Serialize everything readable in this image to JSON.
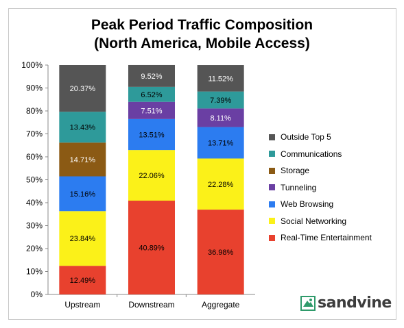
{
  "chart_data": {
    "type": "bar",
    "stacked": true,
    "title": "Peak Period Traffic Composition",
    "subtitle": "(North America, Mobile Access)",
    "categories": [
      "Upstream",
      "Downstream",
      "Aggregate"
    ],
    "ylim": [
      0,
      100
    ],
    "y_ticks": [
      "0%",
      "10%",
      "20%",
      "30%",
      "40%",
      "50%",
      "60%",
      "70%",
      "80%",
      "90%",
      "100%"
    ],
    "legend_position": "right",
    "series": [
      {
        "name": "Real-Time Entertainment",
        "color": "#e8412e",
        "values": [
          12.49,
          40.89,
          36.98
        ],
        "labels": [
          "12.49%",
          "40.89%",
          "36.98%"
        ]
      },
      {
        "name": "Social Networking",
        "color": "#fbf119",
        "values": [
          23.84,
          22.06,
          22.28
        ],
        "labels": [
          "23.84%",
          "22.06%",
          "22.28%"
        ]
      },
      {
        "name": "Web Browsing",
        "color": "#2c7cf0",
        "values": [
          15.16,
          13.51,
          13.71
        ],
        "labels": [
          "15.16%",
          "13.51%",
          "13.71%"
        ]
      },
      {
        "name": "Tunneling",
        "color": "#6a3fa3",
        "values": [
          0,
          7.51,
          8.11
        ],
        "labels": [
          "",
          "7.51%",
          "8.11%"
        ]
      },
      {
        "name": "Storage",
        "color": "#8b5a14",
        "values": [
          14.71,
          0,
          0
        ],
        "labels": [
          "14.71%",
          "",
          ""
        ]
      },
      {
        "name": "Communications",
        "color": "#2e9a9a",
        "values": [
          13.43,
          6.52,
          7.39
        ],
        "labels": [
          "13.43%",
          "6.52%",
          "7.39%"
        ]
      },
      {
        "name": "Outside Top 5",
        "color": "#555555",
        "values": [
          20.37,
          9.52,
          11.52
        ],
        "labels": [
          "20.37%",
          "9.52%",
          "11.52%"
        ]
      }
    ],
    "legend_order": [
      "Outside Top 5",
      "Communications",
      "Storage",
      "Tunneling",
      "Web Browsing",
      "Social Networking",
      "Real-Time Entertainment"
    ]
  },
  "logo": {
    "text": "sandvine",
    "icon": "sandvine-logo-icon"
  }
}
